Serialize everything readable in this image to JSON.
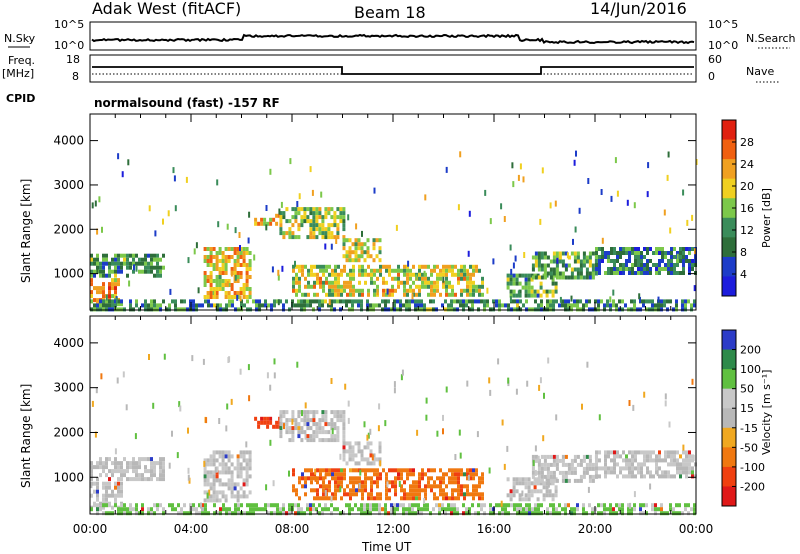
{
  "header": {
    "station": "Adak West (fitACF)",
    "beam": "Beam 18",
    "date": "14/Jun/2016"
  },
  "summary_panel": {
    "nsky_label": "N.Sky",
    "nsky_ticks": [
      "10^5",
      "10^0"
    ],
    "nsearch_label": "N.Search",
    "nsearch_ticks": [
      "10^5",
      "10^0"
    ],
    "freq_label_line1": "Freq.",
    "freq_label_line2": "[MHz]",
    "freq_ticks": [
      "18",
      "8"
    ],
    "nave_label": "Nave",
    "nave_ticks": [
      "60",
      "0"
    ],
    "cpid_label": "CPID",
    "cpid_text": "normalsound (fast) -157 RF"
  },
  "colors": {
    "power_scale": [
      "#1c1cdc",
      "#1c3cc8",
      "#2e6e3a",
      "#3a8c5a",
      "#7cc84a",
      "#f0d020",
      "#f0a020",
      "#f06010",
      "#e02010"
    ],
    "velocity_scale": [
      "#e01818",
      "#f04010",
      "#f07810",
      "#f0a820",
      "#b8b8b8",
      "#c8c8c8",
      "#60c040",
      "#2e8a4a",
      "#2c3cc8"
    ]
  },
  "chart_data": [
    {
      "type": "heatmap",
      "title": "Power",
      "ylabel": "Slant Range [km]",
      "xlabel": "",
      "ylim": [
        180,
        4600
      ],
      "xlim": [
        0,
        24
      ],
      "yticks": [
        "1000",
        "2000",
        "3000",
        "4000"
      ],
      "ytick_values": [
        1000,
        2000,
        3000,
        4000
      ],
      "colorbar_label": "Power [dB]",
      "colorbar_ticks": [
        "28",
        "24",
        "20",
        "16",
        "12",
        "8",
        "4"
      ],
      "colorbar_range": [
        0,
        30
      ],
      "regions": [
        {
          "t0": 0.0,
          "t1": 2.9,
          "r0": 950,
          "r1": 1450,
          "level": 10
        },
        {
          "t0": 0.0,
          "t1": 1.2,
          "r0": 300,
          "r1": 900,
          "level": 22
        },
        {
          "t0": 4.5,
          "t1": 6.3,
          "r0": 500,
          "r1": 1600,
          "level": 20
        },
        {
          "t0": 6.5,
          "t1": 7.5,
          "r0": 2150,
          "r1": 2350,
          "level": 22
        },
        {
          "t0": 7.5,
          "t1": 10.0,
          "r0": 1800,
          "r1": 2500,
          "level": 16
        },
        {
          "t0": 10.0,
          "t1": 11.5,
          "r0": 1300,
          "r1": 1800,
          "level": 18
        },
        {
          "t0": 8.0,
          "t1": 15.5,
          "r0": 500,
          "r1": 1200,
          "level": 18
        },
        {
          "t0": 16.5,
          "t1": 18.5,
          "r0": 500,
          "r1": 1000,
          "level": 12
        },
        {
          "t0": 17.5,
          "t1": 20.0,
          "r0": 900,
          "r1": 1500,
          "level": 12
        },
        {
          "t0": 20.0,
          "t1": 24.0,
          "r0": 1000,
          "r1": 1600,
          "level": 8
        },
        {
          "t0": 0.0,
          "t1": 24.0,
          "r0": 180,
          "r1": 420,
          "level": 10
        }
      ]
    },
    {
      "type": "heatmap",
      "title": "Velocity",
      "ylabel": "Slant Range [km]",
      "xlabel": "Time UT",
      "ylim": [
        180,
        4600
      ],
      "xlim": [
        0,
        24
      ],
      "xticks": [
        "00:00",
        "04:00",
        "08:00",
        "12:00",
        "16:00",
        "20:00",
        "00:00"
      ],
      "xtick_values": [
        0,
        4,
        8,
        12,
        16,
        20,
        24
      ],
      "yticks": [
        "1000",
        "2000",
        "3000",
        "4000"
      ],
      "ytick_values": [
        1000,
        2000,
        3000,
        4000
      ],
      "colorbar_label": "Velocity [m s⁻¹]",
      "colorbar_ticks": [
        "200",
        "100",
        "50",
        "15",
        "-15",
        "-50",
        "-100",
        "-200"
      ],
      "regions": [
        {
          "t0": 0.0,
          "t1": 2.9,
          "r0": 950,
          "r1": 1450,
          "level": 0
        },
        {
          "t0": 0.0,
          "t1": 1.2,
          "r0": 300,
          "r1": 900,
          "level": 0
        },
        {
          "t0": 4.5,
          "t1": 6.3,
          "r0": 500,
          "r1": 1600,
          "level": 0
        },
        {
          "t0": 6.5,
          "t1": 7.5,
          "r0": 2150,
          "r1": 2350,
          "level": -80
        },
        {
          "t0": 7.5,
          "t1": 10.0,
          "r0": 1800,
          "r1": 2500,
          "level": 0
        },
        {
          "t0": 10.0,
          "t1": 11.5,
          "r0": 1300,
          "r1": 1800,
          "level": 0
        },
        {
          "t0": 8.0,
          "t1": 15.5,
          "r0": 500,
          "r1": 1200,
          "level": -40
        },
        {
          "t0": 16.5,
          "t1": 18.5,
          "r0": 500,
          "r1": 1000,
          "level": 0
        },
        {
          "t0": 17.5,
          "t1": 20.0,
          "r0": 900,
          "r1": 1500,
          "level": 0
        },
        {
          "t0": 20.0,
          "t1": 24.0,
          "r0": 1000,
          "r1": 1600,
          "level": 0
        },
        {
          "t0": 0.0,
          "t1": 24.0,
          "r0": 180,
          "r1": 420,
          "level": 20
        }
      ]
    }
  ]
}
